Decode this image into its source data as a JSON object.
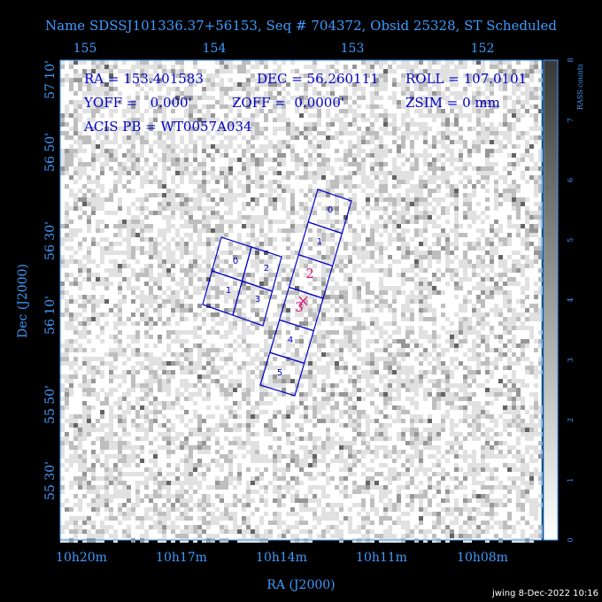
{
  "header": {
    "title": "Name SDSSJ101336.37+56153, Seq # 704372, Obsid 25328, ST Scheduled",
    "footer": "jwing  8-Dec-2022 10:16"
  },
  "info": [
    "RA = 153.401583",
    "DEC = 56.260111",
    "ROLL = 107.0101",
    "YOFF =   0.000'",
    "ZOFF =  0.0000'",
    "ZSIM = 0 mm",
    "ACIS PB = WT0057A034"
  ],
  "axes": {
    "top_labels": [
      "155",
      "154",
      "153",
      "152"
    ],
    "bottom_labels": [
      "10h20m",
      "10h17m",
      "10h14m",
      "10h11m",
      "10h08m"
    ],
    "left_labels": [
      "57 10'",
      "56 50'",
      "56 30'",
      "56 10'",
      "55 50'",
      "55 30'"
    ],
    "x_title": "RA (J2000)",
    "y_title": "Dec (J2000)"
  },
  "colorbar": {
    "title": "RASS counts",
    "labels": [
      "0",
      "1",
      "2",
      "3",
      "4",
      "5",
      "6",
      "7",
      "8"
    ]
  },
  "chips": {
    "i_array": [
      "0",
      "1",
      "2",
      "3"
    ],
    "s_array": [
      "0",
      "1",
      "4",
      "5"
    ],
    "overlay": [
      "2",
      "3"
    ]
  }
}
